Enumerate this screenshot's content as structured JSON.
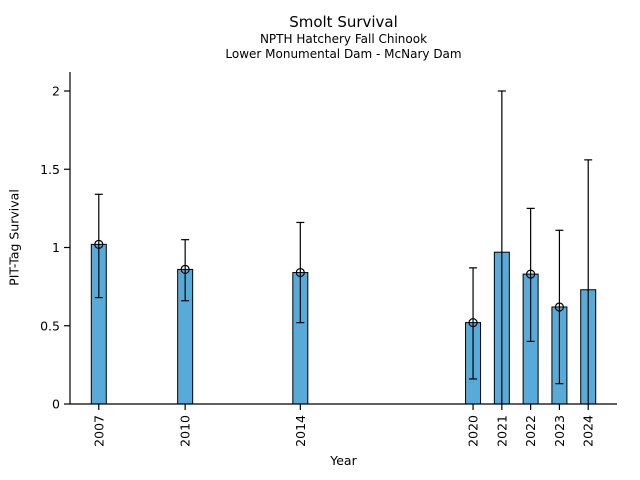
{
  "figure": {
    "background": "#ffffff",
    "text_color": "#000000"
  },
  "chart_data": {
    "type": "bar",
    "title": "Smolt Survival",
    "subtitle1": "NPTH Hatchery Fall Chinook",
    "subtitle2": "Lower Monumental Dam - McNary Dam",
    "xlabel": "Year",
    "ylabel": "PIT-Tag Survival",
    "grid": false,
    "legend": null,
    "bar_color": "#58ABD9",
    "bar_edge_color": "#000000",
    "errorbar_color": "#000000",
    "marker_style": "open-circle",
    "x_axis": {
      "scale": "linear-year",
      "range": [
        2006,
        2025
      ],
      "tick_labels": [
        "2007",
        "2010",
        "2014",
        "2020",
        "2021",
        "2022",
        "2023",
        "2024"
      ],
      "tick_rotation_deg": 90
    },
    "y_axis": {
      "ylim": [
        0,
        2
      ],
      "ticks": [
        0,
        0.5,
        1,
        1.5,
        2
      ],
      "tick_labels": [
        "0",
        "0.5",
        "1",
        "1.5",
        "2"
      ]
    },
    "series": [
      {
        "year": 2007,
        "value": 1.02,
        "ci_low": 0.68,
        "ci_high": 1.34,
        "marker": true,
        "ci_low_cap": true
      },
      {
        "year": 2010,
        "value": 0.86,
        "ci_low": 0.66,
        "ci_high": 1.05,
        "marker": true,
        "ci_low_cap": true
      },
      {
        "year": 2014,
        "value": 0.84,
        "ci_low": 0.52,
        "ci_high": 1.16,
        "marker": true,
        "ci_low_cap": true
      },
      {
        "year": 2020,
        "value": 0.52,
        "ci_low": 0.16,
        "ci_high": 0.87,
        "marker": true,
        "ci_low_cap": true
      },
      {
        "year": 2021,
        "value": 0.97,
        "ci_low": 0.0,
        "ci_high": 2.0,
        "marker": false,
        "ci_low_cap": false
      },
      {
        "year": 2022,
        "value": 0.83,
        "ci_low": 0.4,
        "ci_high": 1.25,
        "marker": true,
        "ci_low_cap": true
      },
      {
        "year": 2023,
        "value": 0.62,
        "ci_low": 0.13,
        "ci_high": 1.11,
        "marker": true,
        "ci_low_cap": true
      },
      {
        "year": 2024,
        "value": 0.73,
        "ci_low": 0.0,
        "ci_high": 1.56,
        "marker": false,
        "ci_low_cap": false
      }
    ]
  }
}
